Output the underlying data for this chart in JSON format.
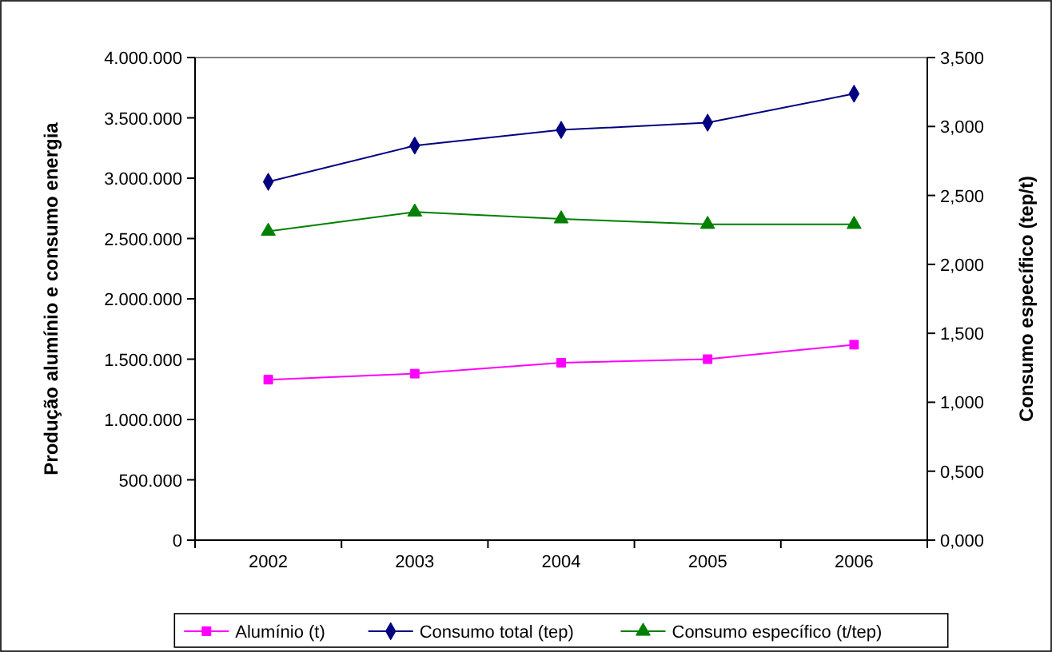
{
  "chart_data": {
    "type": "line",
    "categories": [
      "2002",
      "2003",
      "2004",
      "2005",
      "2006"
    ],
    "ylabel": "Produção alumínio e consumo energia",
    "y2label": "Consumo específico (tep/t)",
    "ylim": [
      0,
      4000000
    ],
    "yticks": [
      {
        "value": 0,
        "label": "0"
      },
      {
        "value": 500000,
        "label": "500.000"
      },
      {
        "value": 1000000,
        "label": "1.000.000"
      },
      {
        "value": 1500000,
        "label": "1.500.000"
      },
      {
        "value": 2000000,
        "label": "2.000.000"
      },
      {
        "value": 2500000,
        "label": "2.500.000"
      },
      {
        "value": 3000000,
        "label": "3.000.000"
      },
      {
        "value": 3500000,
        "label": "3.500.000"
      },
      {
        "value": 4000000,
        "label": "4.000.000"
      }
    ],
    "y2lim": [
      0,
      3.5
    ],
    "y2ticks": [
      {
        "value": 0,
        "label": "0,000"
      },
      {
        "value": 0.5,
        "label": "0,500"
      },
      {
        "value": 1,
        "label": "1,000"
      },
      {
        "value": 1.5,
        "label": "1,500"
      },
      {
        "value": 2,
        "label": "2,000"
      },
      {
        "value": 2.5,
        "label": "2,500"
      },
      {
        "value": 3,
        "label": "3,000"
      },
      {
        "value": 3.5,
        "label": "3,500"
      }
    ],
    "grid": false,
    "legend": "bottom",
    "series": [
      {
        "name": "Alumínio (t)",
        "color": "#ff00ff",
        "marker": "square",
        "values": [
          1330000,
          1380000,
          1470000,
          1500000,
          1620000
        ]
      },
      {
        "name": "Consumo total (tep)",
        "color": "#000080",
        "marker": "diamond",
        "values": [
          2970000,
          3270000,
          3400000,
          3460000,
          3700000
        ]
      },
      {
        "name": "Consumo específico (t/tep)",
        "color": "#008000",
        "marker": "triangle",
        "axis": "y2",
        "values": [
          2.24,
          2.38,
          2.33,
          2.29,
          2.29
        ]
      }
    ]
  }
}
